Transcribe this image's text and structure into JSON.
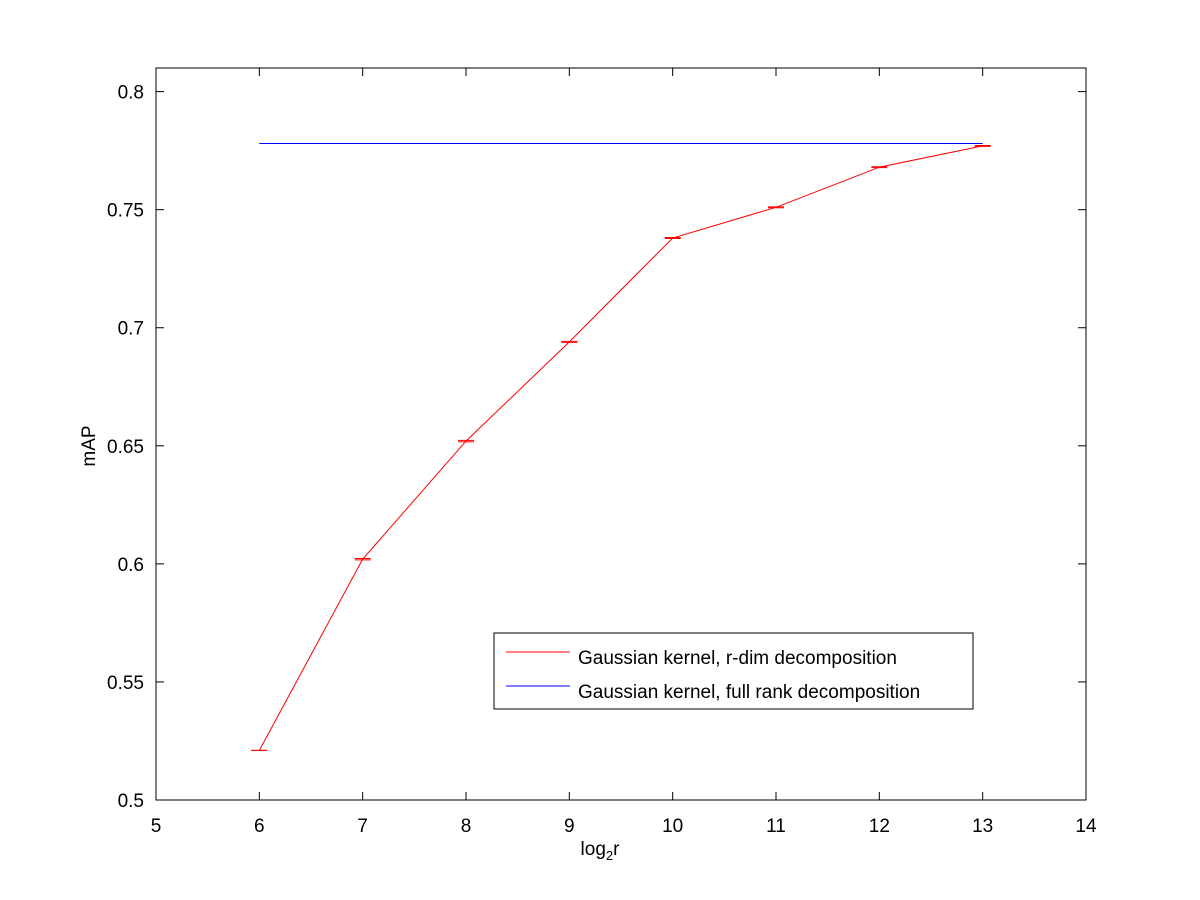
{
  "chart_data": {
    "type": "line",
    "xlabel": "log",
    "xlabel_sub": "2",
    "xlabel_tail": "r",
    "ylabel": "mAP",
    "xlim": [
      5,
      14
    ],
    "ylim": [
      0.5,
      0.81
    ],
    "xticks": [
      5,
      6,
      7,
      8,
      9,
      10,
      11,
      12,
      13,
      14
    ],
    "yticks": [
      0.5,
      0.55,
      0.6,
      0.65,
      0.7,
      0.75,
      0.8
    ],
    "xtick_labels": [
      "5",
      "6",
      "7",
      "8",
      "9",
      "10",
      "11",
      "12",
      "13",
      "14"
    ],
    "ytick_labels": [
      "0.5",
      "0.55",
      "0.6",
      "0.65",
      "0.7",
      "0.75",
      "0.8"
    ],
    "grid": false,
    "legend_position": "bottom-right",
    "series": [
      {
        "name": "Gaussian kernel, r-dim decomposition",
        "color": "#ff0000",
        "x": [
          6,
          7,
          8,
          9,
          10,
          11,
          12,
          13
        ],
        "y": [
          0.521,
          0.602,
          0.652,
          0.694,
          0.738,
          0.751,
          0.768,
          0.777
        ],
        "error_bar_halfwidth": [
          0.0,
          0.0003,
          0.0003,
          0.0002,
          0.0002,
          0.0002,
          0.0002,
          0.0002
        ]
      },
      {
        "name": "Gaussian kernel, full rank decomposition",
        "color": "#0000ff",
        "x": [
          6,
          13
        ],
        "y": [
          0.778,
          0.778
        ]
      }
    ]
  }
}
